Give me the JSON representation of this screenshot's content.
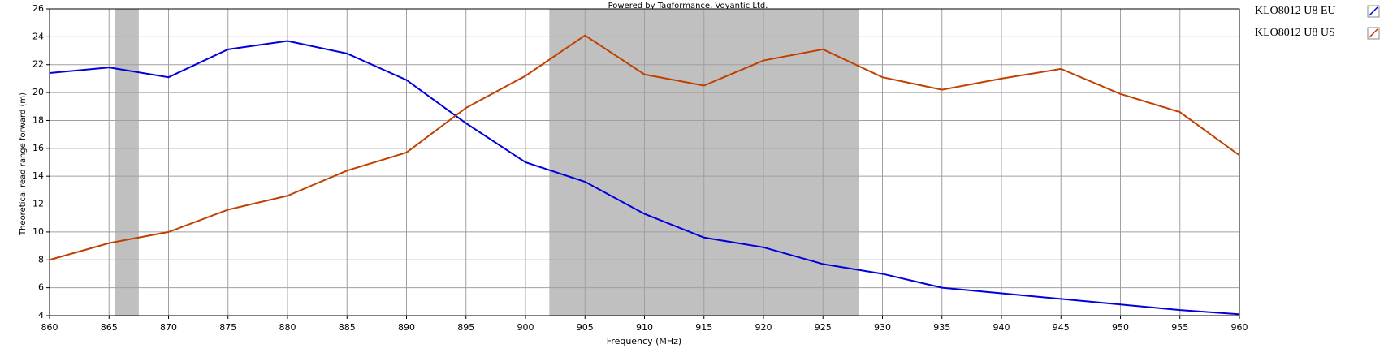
{
  "chart_data": {
    "type": "line",
    "annotation": "Powered by Tagformance, Voyantic Ltd.",
    "x_label": "Frequency (MHz)",
    "y_label": "Theoretical read range forward (m)",
    "x": [
      860,
      865,
      870,
      875,
      880,
      885,
      890,
      895,
      900,
      905,
      910,
      915,
      920,
      925,
      930,
      935,
      940,
      945,
      950,
      955,
      960
    ],
    "series": [
      {
        "name": "KLO8012 U8 EU",
        "color": "#0000dd",
        "values": [
          21.4,
          21.8,
          21.1,
          23.1,
          23.7,
          22.8,
          20.9,
          17.8,
          15.0,
          13.6,
          11.3,
          9.6,
          8.9,
          7.7,
          7.0,
          6.0,
          5.6,
          5.2,
          4.8,
          4.4,
          4.1
        ]
      },
      {
        "name": "KLO8012 U8 US",
        "color": "#c04000",
        "values": [
          8.0,
          9.2,
          10.0,
          11.6,
          12.6,
          14.4,
          15.7,
          18.9,
          21.2,
          24.1,
          21.3,
          20.5,
          22.3,
          23.1,
          21.1,
          20.2,
          21.0,
          21.7,
          19.9,
          18.6,
          15.5
        ]
      }
    ],
    "bands": [
      [
        865.5,
        867.5
      ],
      [
        902,
        928
      ]
    ],
    "band_color": "#c0c0c0",
    "xlim": [
      860,
      960
    ],
    "xticks": [
      860,
      865,
      870,
      875,
      880,
      885,
      890,
      895,
      900,
      905,
      910,
      915,
      920,
      925,
      930,
      935,
      940,
      945,
      950,
      955,
      960
    ],
    "ylim": [
      4,
      26
    ],
    "yticks": [
      4,
      6,
      8,
      10,
      12,
      14,
      16,
      18,
      20,
      22,
      24,
      26
    ],
    "grid": true,
    "legend": "right"
  }
}
